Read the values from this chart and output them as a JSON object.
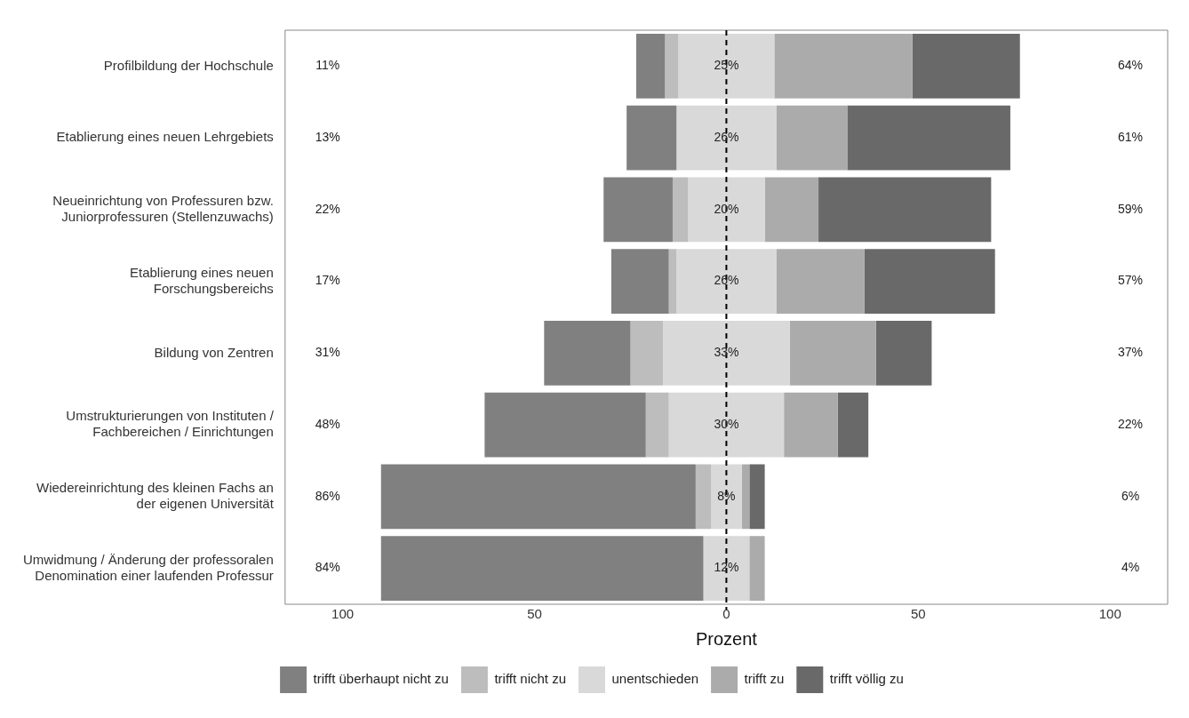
{
  "chart_data": {
    "type": "bar",
    "orientation": "horizontal",
    "xlabel": "Prozent",
    "legend": "bottom",
    "categories": [
      "Profilbildung der Hochschule",
      "Etablierung eines neuen Lehrgebiets",
      "Neueinrichtung von Professuren bzw.\nJuniorprofessuren (Stellenzuwachs)",
      "Etablierung eines neuen\nForschungsbereichs",
      "Bildung von Zentren",
      "Umstrukturierungen von Instituten /\nFachbereichen / Einrichtungen",
      "Wiedereinrichtung des kleinen Fachs an\nder eigenen Universität",
      "Umwidmung / Änderung der professoralen\nDenomination einer laufenden Professur"
    ],
    "series": [
      {
        "name": "trifft überhaupt nicht zu",
        "color": "#808080",
        "base": [
          -23.5,
          -26,
          -32,
          -30,
          -47.5,
          -63,
          -90,
          -90
        ],
        "values": [
          7.5,
          13,
          18,
          15,
          22.5,
          42,
          82,
          84
        ]
      },
      {
        "name": "trifft nicht zu",
        "color": "#bdbdbd",
        "base": [
          -16,
          null,
          -14,
          -15,
          -25,
          -21,
          -8,
          null
        ],
        "values": [
          3.5,
          null,
          4,
          2,
          8.5,
          6,
          4,
          null
        ]
      },
      {
        "name": "unentschieden",
        "color": "#d9d9d9",
        "base": [
          -12.5,
          -13,
          -10,
          -13,
          -16.5,
          -15,
          -4,
          -6
        ],
        "values": [
          25,
          26,
          20,
          26,
          33,
          30,
          8,
          12
        ],
        "value_labels": [
          "25%",
          "26%",
          "20%",
          "26%",
          "33%",
          "30%",
          "8%",
          "12%"
        ]
      },
      {
        "name": "trifft zu",
        "color": "#ababab",
        "base": [
          12.5,
          13,
          10,
          13,
          16.5,
          15,
          4,
          6
        ],
        "values": [
          36,
          18.5,
          14,
          23,
          22.5,
          14,
          2,
          4
        ]
      },
      {
        "name": "trifft völlig zu",
        "color": "#696969",
        "base": [
          48.5,
          31.5,
          24,
          36,
          39,
          29,
          6,
          null
        ],
        "values": [
          28,
          42.5,
          45,
          34,
          14.5,
          8,
          4,
          null
        ]
      }
    ],
    "xlim": [
      -115,
      115
    ],
    "xticks": [
      {
        "value": -100,
        "label": "100"
      },
      {
        "value": -50,
        "label": "50"
      },
      0,
      50,
      100
    ],
    "ref_lines": [
      {
        "axis": "x",
        "value": 0,
        "color": "#000000",
        "line_style": "dashed"
      }
    ],
    "annotations": [
      "11%",
      "13%",
      "22%",
      "17%",
      "31%",
      "48%",
      "86%",
      "84%",
      "64%",
      "61%",
      "59%",
      "57%",
      "37%",
      "22%",
      "6%",
      "4%"
    ]
  }
}
